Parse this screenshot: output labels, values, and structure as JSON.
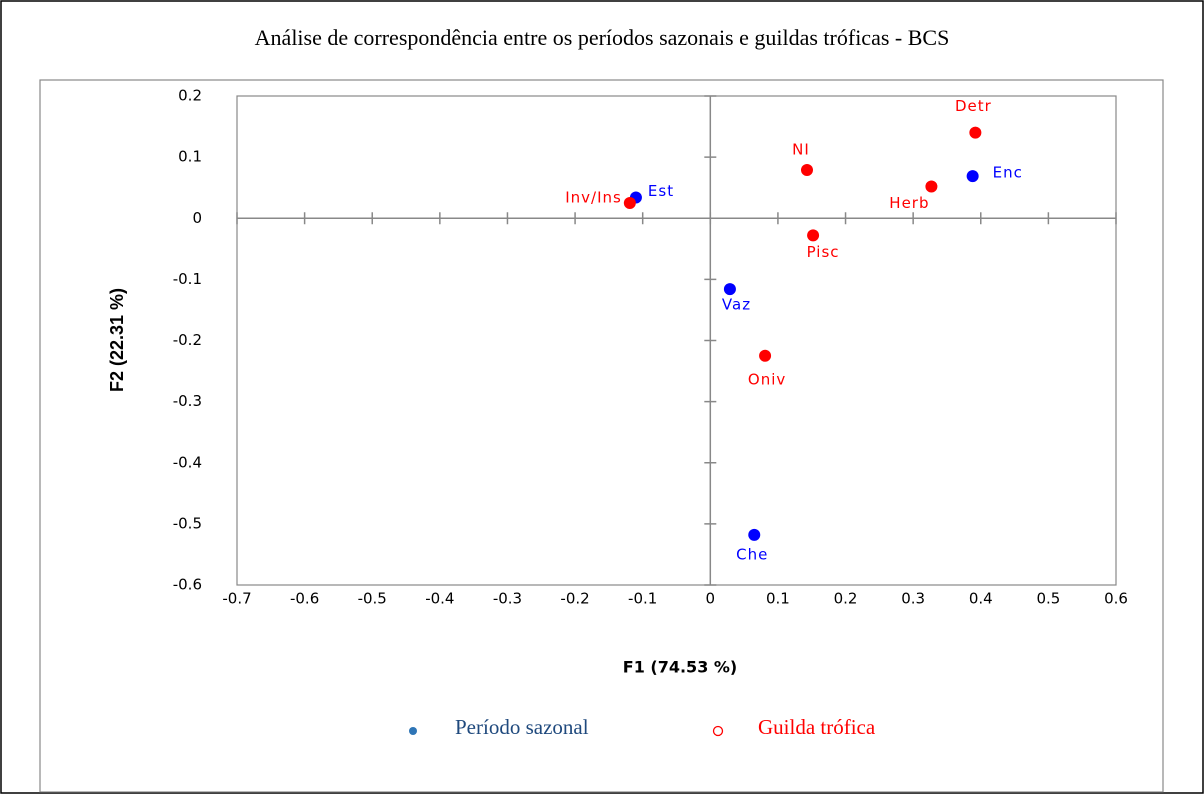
{
  "chart_data": {
    "type": "scatter",
    "title": "Análise de correspondência entre os períodos sazonais e guildas tróficas - BCS",
    "x_label": "F1 (74.53 %)",
    "y_label": "F2 (22.31 %)",
    "xlim": [
      -0.7,
      0.6
    ],
    "xticks": [
      -0.7,
      -0.6,
      -0.5,
      -0.4,
      -0.3,
      -0.2,
      -0.1,
      0,
      0.1,
      0.2,
      0.3,
      0.4,
      0.5,
      0.6
    ],
    "ylim": [
      -0.6,
      0.2
    ],
    "yticks": [
      -0.6,
      -0.5,
      -0.4,
      -0.3,
      -0.2,
      -0.1,
      0,
      0.1,
      0.2
    ],
    "series": [
      {
        "name": "Período sazonal",
        "color": "#0000ff",
        "marker": "filled",
        "labels": [
          "Est",
          "Enc",
          "Vaz",
          "Che"
        ],
        "x": [
          -0.11,
          0.388,
          0.029,
          0.065
        ],
        "y": [
          0.034,
          0.069,
          -0.116,
          -0.518
        ]
      },
      {
        "name": "Guilda trófica",
        "color": "#ff0000",
        "marker": "open",
        "labels": [
          "Detr",
          "NI",
          "Herb",
          "Inv/Ins",
          "Pisc",
          "Oniv"
        ],
        "x": [
          0.392,
          0.143,
          0.327,
          -0.119,
          0.152,
          0.081
        ],
        "y": [
          0.14,
          0.079,
          0.052,
          0.025,
          -0.028,
          -0.225
        ]
      }
    ]
  }
}
